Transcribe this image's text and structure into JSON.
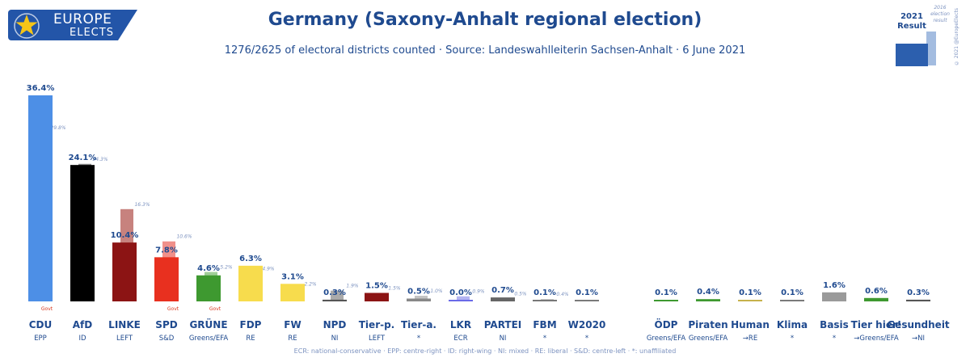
{
  "header": {
    "logo_line1": "EUROPE",
    "logo_line2": "ELECTS",
    "title": "Germany (Saxony-Anhalt regional election)",
    "subtitle": "1276/2625 of electoral districts counted · Source: Landeswahlleiterin Sachsen-Anhalt · 6 June 2021",
    "legend_2021": "2021 Result",
    "legend_2016": "2016 election result",
    "copyright": "© 2021 @EuropeElects"
  },
  "footnote": "ECR: national-conservative · EPP: centre-right · ID: right-wing · NI: mixed · RE: liberal · S&D: centre-left · *: unaffiliated",
  "chart_data": {
    "type": "bar",
    "title": "Germany (Saxony-Anhalt regional election)",
    "ylim": [
      0,
      36.4
    ],
    "series": [
      {
        "name": "2021",
        "values": [
          36.4,
          24.1,
          10.4,
          7.8,
          4.6,
          6.3,
          3.1,
          0.3,
          1.5,
          0.5,
          0.0,
          0.7,
          0.1,
          0.1,
          0.1,
          0.4,
          0.1,
          0.1,
          1.6,
          0.6,
          0.3
        ]
      },
      {
        "name": "2016",
        "values": [
          29.8,
          24.3,
          16.3,
          10.6,
          5.2,
          4.9,
          2.2,
          1.9,
          1.5,
          1.0,
          0.9,
          0.5,
          0.4,
          null,
          null,
          null,
          null,
          null,
          null,
          null,
          null
        ]
      }
    ],
    "categories": [
      "CDU",
      "AfD",
      "LINKE",
      "SPD",
      "GRÜNE",
      "FDP",
      "FW",
      "NPD",
      "Tier-p.",
      "Tier-a.",
      "LKR",
      "PARTEI",
      "FBM",
      "W2020",
      "ÖDP",
      "Piraten",
      "Human",
      "Klima",
      "Basis",
      "Tier hier!",
      "Gesundheit"
    ],
    "groups": [
      "EPP",
      "ID",
      "LEFT",
      "S&D",
      "Greens/EFA",
      "RE",
      "RE",
      "NI",
      "LEFT",
      "*",
      "ECR",
      "NI",
      "*",
      "*",
      "Greens/EFA",
      "Greens/EFA",
      "→RE",
      "*",
      "*",
      "→Greens/EFA",
      "→NI"
    ],
    "labels_2021": [
      "36.4%",
      "24.1%",
      "10.4%",
      "7.8%",
      "4.6%",
      "6.3%",
      "3.1%",
      "0.3%",
      "1.5%",
      "0.5%",
      "0.0%",
      "0.7%",
      "0.1%",
      "0.1%",
      "0.1%",
      "0.4%",
      "0.1%",
      "0.1%",
      "1.6%",
      "0.6%",
      "0.3%"
    ],
    "labels_2016": [
      "29.8%",
      "24.3%",
      "16.3%",
      "10.6%",
      "5.2%",
      "4.9%",
      "2.2%",
      "1.9%",
      "1.5%",
      "1.0%",
      "0.9%",
      "0.5%",
      "0.4%",
      "",
      "",
      "",
      "",
      "",
      "",
      "",
      ""
    ],
    "govt_label": "Govt",
    "govt": [
      true,
      false,
      false,
      true,
      true,
      false,
      false,
      false,
      false,
      false,
      false,
      false,
      false,
      false,
      false,
      false,
      false,
      false,
      false,
      false,
      false
    ],
    "colors_2021": [
      "#4d8fe6",
      "#000000",
      "#8c1414",
      "#e8301f",
      "#3e9930",
      "#f7dc4d",
      "#f7dc4d",
      "#555555",
      "#8c1414",
      "#888888",
      "#6a6ae8",
      "#666666",
      "#777777",
      "#7a7a7a",
      "#3e9930",
      "#3e9930",
      "#c7b24c",
      "#7a7a7a",
      "#9a9a9a",
      "#3e9930",
      "#555555"
    ],
    "colors_2016": [
      "#a9c8f2",
      "#8a8a8a",
      "#c7827e",
      "#f0908a",
      "#9fce98",
      "#faecab",
      "#faecab",
      "#aaaaaa",
      "#c7827e",
      "#c4c4c4",
      "#b4b4f2",
      "#b0b0b0",
      "#bbbbbb",
      "",
      "",
      "",
      "",
      "",
      "",
      "",
      ""
    ]
  }
}
